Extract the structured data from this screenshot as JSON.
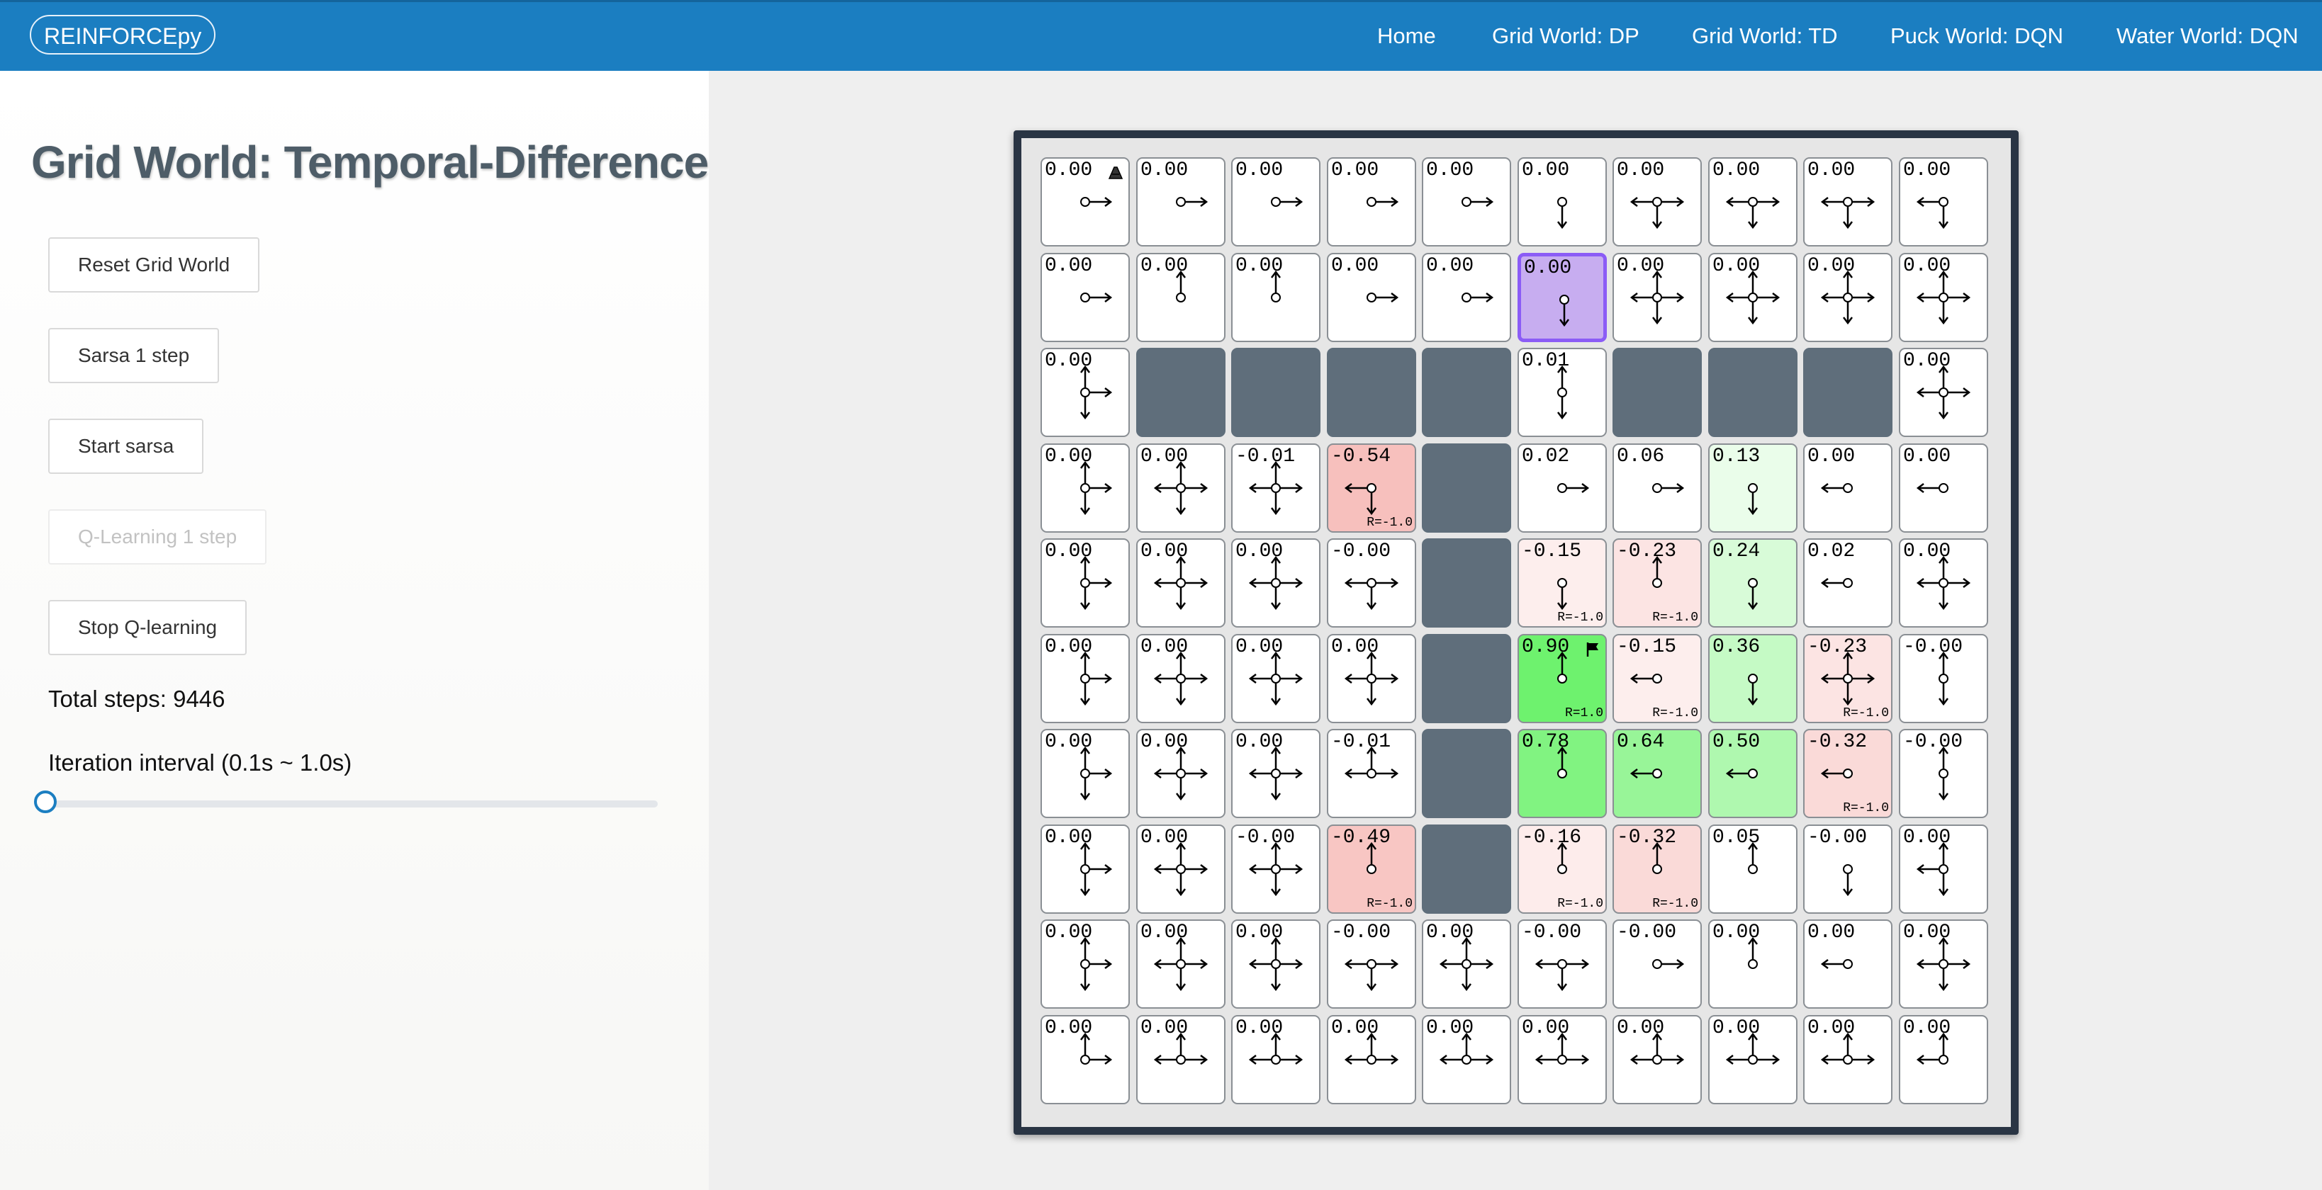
{
  "navbar": {
    "brand": "REINFORCEpy",
    "links": [
      "Home",
      "Grid World: DP",
      "Grid World: TD",
      "Puck World: DQN",
      "Water World: DQN"
    ]
  },
  "sidebar": {
    "title": "Grid World: Temporal-Difference",
    "buttons": [
      {
        "label": "Reset Grid World",
        "disabled": false
      },
      {
        "label": "Sarsa 1 step",
        "disabled": false
      },
      {
        "label": "Start sarsa",
        "disabled": false
      },
      {
        "label": "Q-Learning 1 step",
        "disabled": true
      },
      {
        "label": "Stop Q-learning",
        "disabled": false
      }
    ],
    "total_steps": "Total steps: 9446",
    "slider": {
      "label": "Iteration interval (0.1s ~ 1.0s)",
      "value": 0.1,
      "min": 0.1,
      "max": 1.0
    }
  },
  "grid": {
    "rows": 10,
    "cols": 10,
    "agent": [
      1,
      5
    ],
    "start_cell": [
      0,
      0
    ],
    "goal_cell": [
      5,
      5
    ],
    "values": [
      [
        "0.00",
        "0.00",
        "0.00",
        "0.00",
        "0.00",
        "0.00",
        "0.00",
        "0.00",
        "0.00",
        "0.00"
      ],
      [
        "0.00",
        "0.00",
        "0.00",
        "0.00",
        "0.00",
        "0.00",
        "0.00",
        "0.00",
        "0.00",
        "0.00"
      ],
      [
        "0.00",
        "",
        "",
        "",
        "",
        "0.01",
        "",
        "",
        "",
        "0.00"
      ],
      [
        "0.00",
        "0.00",
        "-0.01",
        "-0.54",
        "",
        "0.02",
        "0.06",
        "0.13",
        "0.00",
        "0.00"
      ],
      [
        "0.00",
        "0.00",
        "0.00",
        "-0.00",
        "",
        "-0.15",
        "-0.23",
        "0.24",
        "0.02",
        "0.00"
      ],
      [
        "0.00",
        "0.00",
        "0.00",
        "0.00",
        "",
        "0.90",
        "-0.15",
        "0.36",
        "-0.23",
        "-0.00"
      ],
      [
        "0.00",
        "0.00",
        "0.00",
        "-0.01",
        "",
        "0.78",
        "0.64",
        "0.50",
        "-0.32",
        "-0.00"
      ],
      [
        "0.00",
        "0.00",
        "-0.00",
        "-0.49",
        "",
        "-0.16",
        "-0.32",
        "0.05",
        "-0.00",
        "0.00"
      ],
      [
        "0.00",
        "0.00",
        "0.00",
        "-0.00",
        "0.00",
        "-0.00",
        "-0.00",
        "0.00",
        "0.00",
        "0.00"
      ],
      [
        "0.00",
        "0.00",
        "0.00",
        "0.00",
        "0.00",
        "0.00",
        "0.00",
        "0.00",
        "0.00",
        "0.00"
      ]
    ],
    "walls": [
      [
        2,
        1
      ],
      [
        2,
        2
      ],
      [
        2,
        3
      ],
      [
        2,
        4
      ],
      [
        2,
        6
      ],
      [
        2,
        7
      ],
      [
        2,
        8
      ],
      [
        3,
        4
      ],
      [
        4,
        4
      ],
      [
        5,
        4
      ],
      [
        6,
        4
      ],
      [
        7,
        4
      ]
    ],
    "rewards": [
      {
        "r": 3,
        "c": 3,
        "text": "R=-1.0"
      },
      {
        "r": 4,
        "c": 5,
        "text": "R=-1.0"
      },
      {
        "r": 4,
        "c": 6,
        "text": "R=-1.0"
      },
      {
        "r": 5,
        "c": 5,
        "text": "R=1.0"
      },
      {
        "r": 5,
        "c": 6,
        "text": "R=-1.0"
      },
      {
        "r": 5,
        "c": 8,
        "text": "R=-1.0"
      },
      {
        "r": 6,
        "c": 8,
        "text": "R=-1.0"
      },
      {
        "r": 7,
        "c": 3,
        "text": "R=-1.0"
      },
      {
        "r": 7,
        "c": 5,
        "text": "R=-1.0"
      },
      {
        "r": 7,
        "c": 6,
        "text": "R=-1.0"
      }
    ],
    "colors": {
      "cell": "#ffffff",
      "wall": "#5f6e7b",
      "agent": "#c7adf0",
      "agent_border": "#8b5cf6",
      "positive": "#5ef05e",
      "negative": "#f08b84"
    },
    "policy": [
      [
        "R",
        "R",
        "R",
        "R",
        "R",
        "D",
        "LRD",
        "LRD",
        "LRD",
        "LD"
      ],
      [
        "R",
        "U",
        "U",
        "R",
        "R",
        "D",
        "ULRD",
        "ULRD",
        "ULRD",
        "ULRD"
      ],
      [
        "URD",
        "",
        "",
        "",
        "",
        "UD",
        "",
        "",
        "",
        "ULRD"
      ],
      [
        "URD",
        "ULRD",
        "ULRD",
        "LD",
        "",
        "R",
        "R",
        "D",
        "L",
        "L"
      ],
      [
        "URD",
        "ULRD",
        "ULRD",
        "LRD",
        "",
        "D",
        "U",
        "D",
        "L",
        "ULRD"
      ],
      [
        "URD",
        "ULRD",
        "ULRD",
        "ULRD",
        "",
        "U",
        "L",
        "D",
        "ULRD",
        "UD"
      ],
      [
        "URD",
        "ULRD",
        "ULRD",
        "ULR",
        "",
        "U",
        "L",
        "L",
        "L",
        "UD"
      ],
      [
        "URD",
        "ULRD",
        "ULRD",
        "U",
        "",
        "U",
        "U",
        "U",
        "D",
        "ULD"
      ],
      [
        "URD",
        "ULRD",
        "ULRD",
        "LRD",
        "ULRD",
        "LRD",
        "R",
        "U",
        "L",
        "ULRD"
      ],
      [
        "UR",
        "ULR",
        "ULR",
        "ULR",
        "ULR",
        "ULR",
        "ULR",
        "ULR",
        "ULR",
        "UL"
      ]
    ]
  }
}
